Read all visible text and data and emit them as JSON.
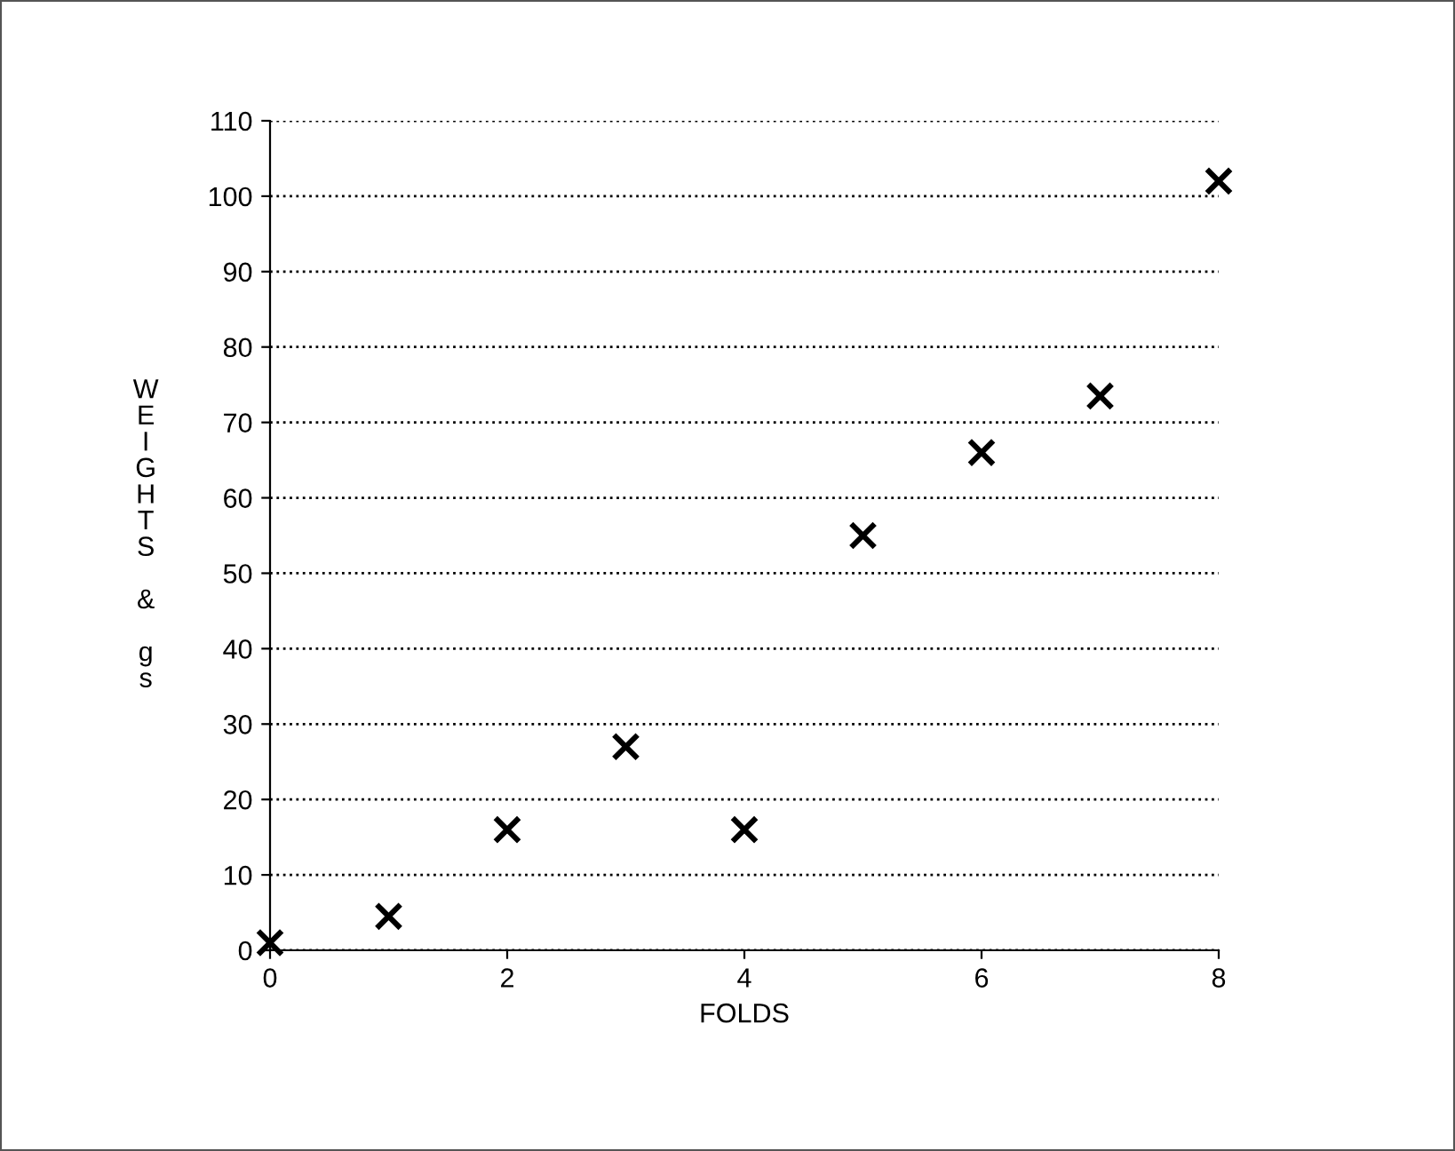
{
  "chart_data": {
    "type": "scatter",
    "xlabel": "FOLDS",
    "ylabel": "WEIGHTS & gs",
    "x": [
      0,
      1,
      2,
      3,
      4,
      5,
      6,
      7,
      8
    ],
    "series": [
      {
        "color": "#000000",
        "values": [
          1,
          4.5,
          16,
          27,
          16,
          55,
          66,
          73.5,
          102
        ]
      }
    ],
    "xlim": [
      0,
      8
    ],
    "xticks": [
      0,
      2,
      4,
      6,
      8
    ],
    "ylim": [
      0,
      110
    ],
    "yticks": [
      0,
      10,
      20,
      30,
      40,
      50,
      60,
      70,
      80,
      90,
      100,
      110
    ],
    "grid": "y",
    "marker": "cross",
    "legend": false
  }
}
